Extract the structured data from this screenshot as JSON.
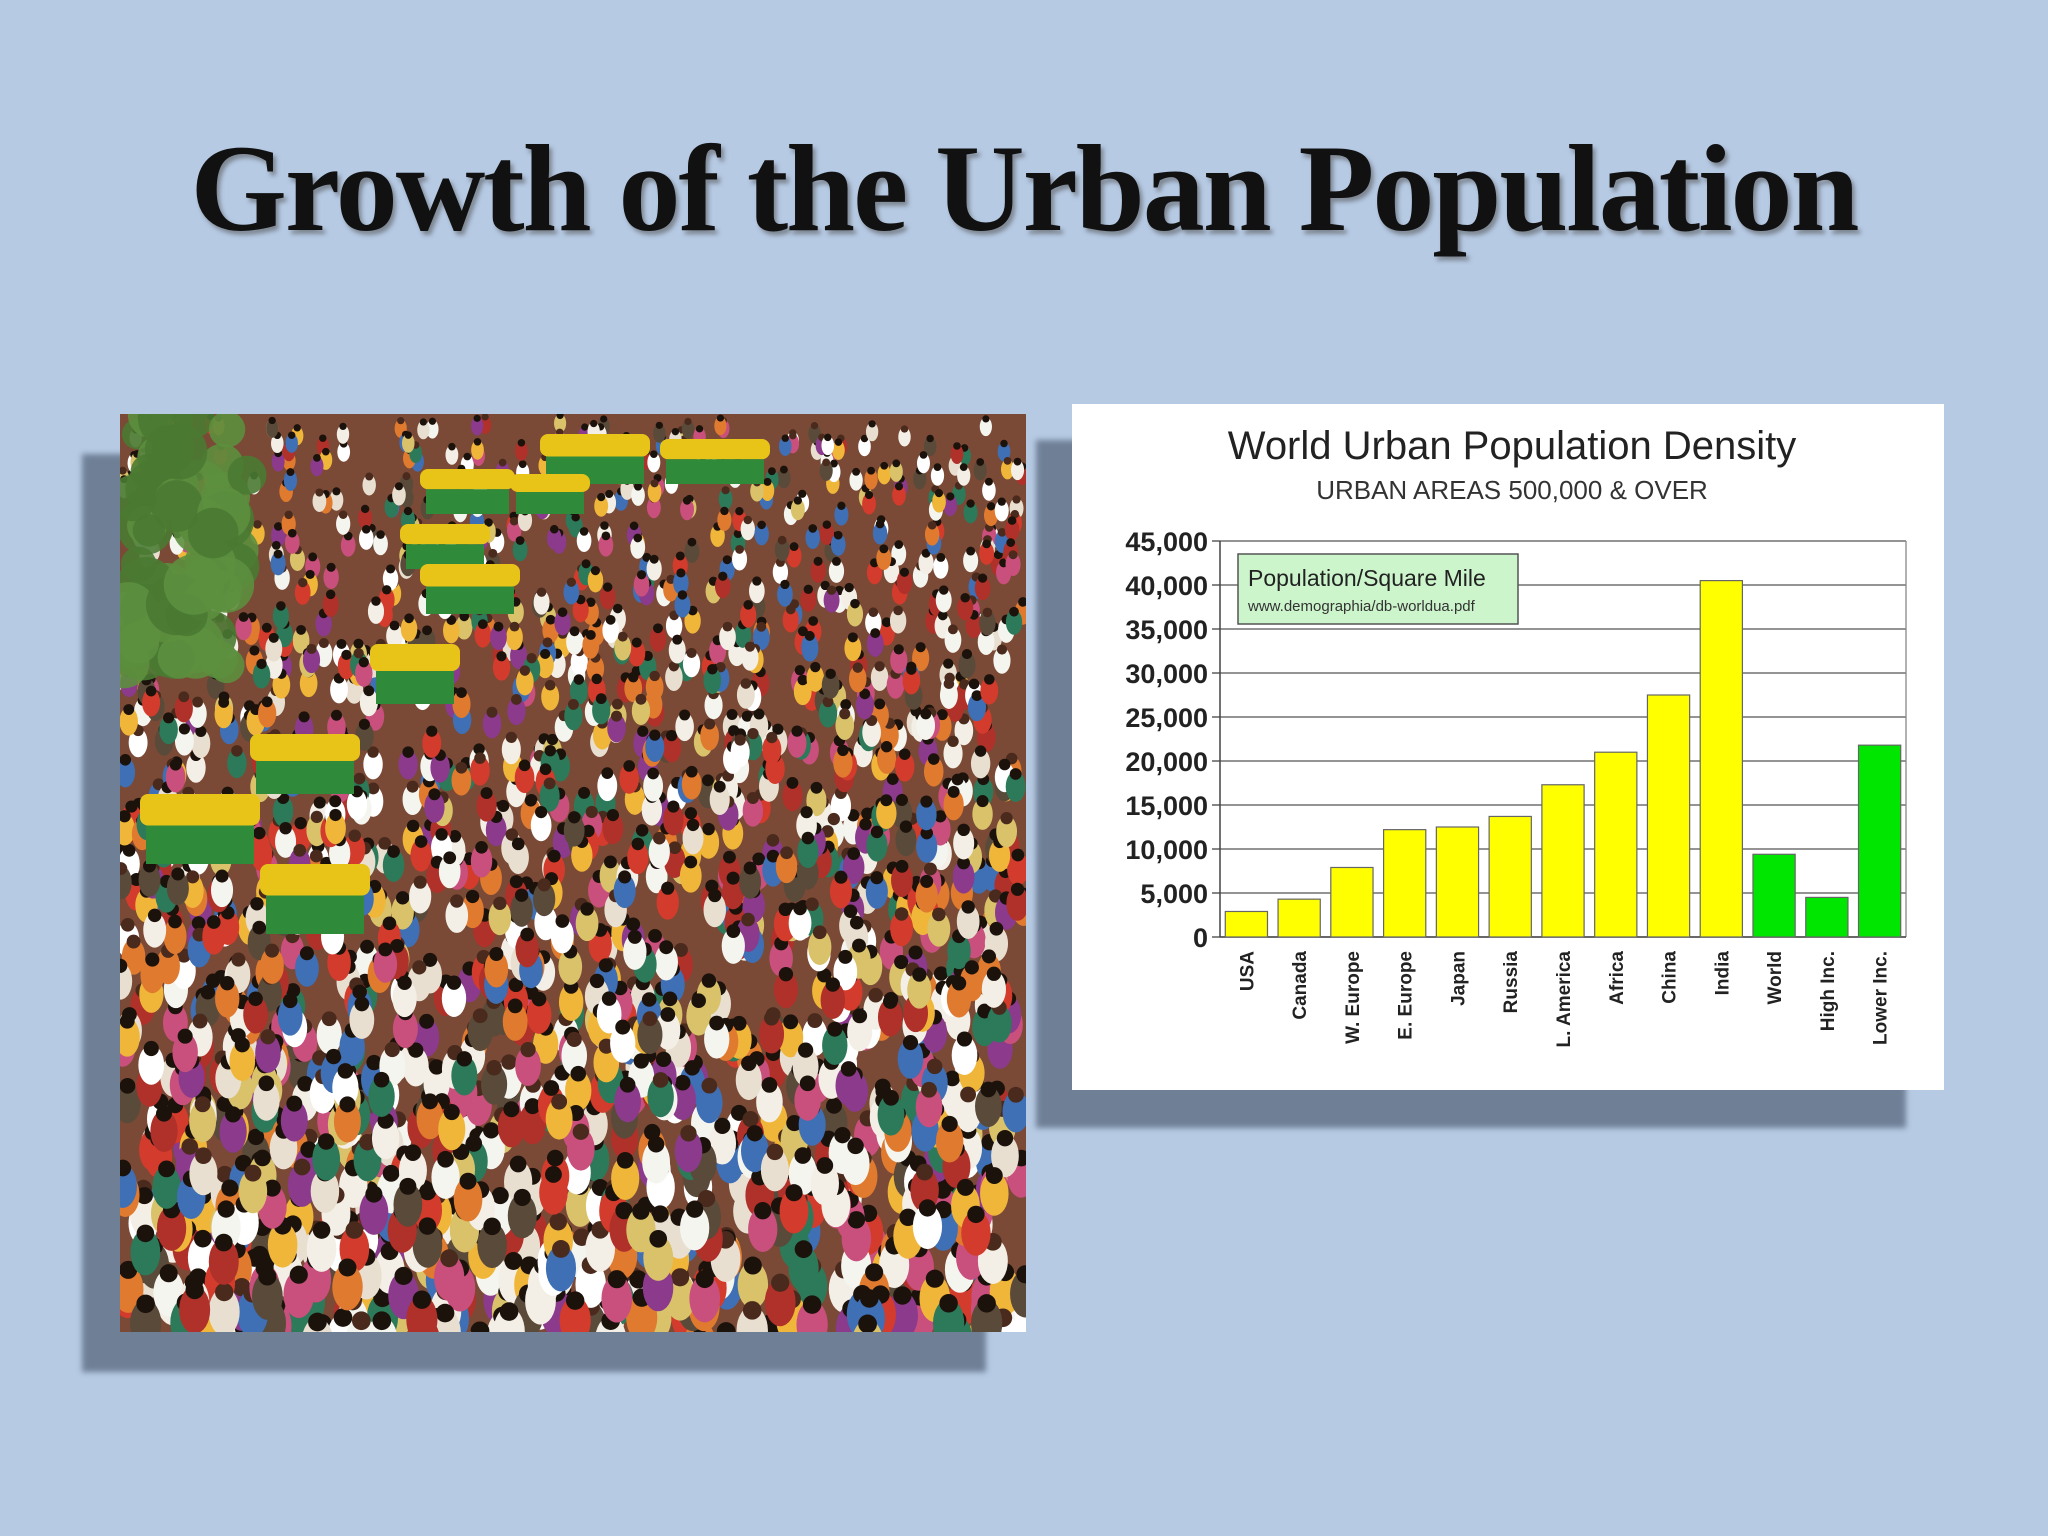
{
  "slide": {
    "title": "Growth of the Urban Population"
  },
  "photo": {
    "icon": "crowd-photo",
    "colors": {
      "base": "#7a4a36",
      "rickshaw_yellow": "#e8c419",
      "rickshaw_green": "#2f8a3a",
      "foliage": "#5c8f3e"
    }
  },
  "chart_data": {
    "type": "bar",
    "title": "World Urban Population Density",
    "subtitle": "URBAN AREAS 500,000 & OVER",
    "xlabel": "",
    "ylabel": "",
    "ylim": [
      0,
      45000
    ],
    "yticks": [
      0,
      5000,
      10000,
      15000,
      20000,
      25000,
      30000,
      35000,
      40000,
      45000
    ],
    "ytick_labels": [
      "0",
      "5,000",
      "10,000",
      "15,000",
      "20,000",
      "25,000",
      "30,000",
      "35,000",
      "40,000",
      "45,000"
    ],
    "grid": true,
    "categories": [
      "USA",
      "Canada",
      "W. Europe",
      "E. Europe",
      "Japan",
      "Russia",
      "L. America",
      "Africa",
      "China",
      "India",
      "World",
      "High Inc.",
      "Lower Inc."
    ],
    "values": [
      2900,
      4300,
      7900,
      12200,
      12500,
      13700,
      17300,
      21000,
      27500,
      40500,
      9400,
      4500,
      21800
    ],
    "bar_colors": [
      "#ffff00",
      "#ffff00",
      "#ffff00",
      "#ffff00",
      "#ffff00",
      "#ffff00",
      "#ffff00",
      "#ffff00",
      "#ffff00",
      "#ffff00",
      "#00e600",
      "#00e600",
      "#00e600"
    ],
    "legend": {
      "position": "top-left",
      "label": "Population/Square Mile",
      "source": "www.demographia/db-worldua.pdf",
      "color": "#ccf5cc"
    }
  }
}
